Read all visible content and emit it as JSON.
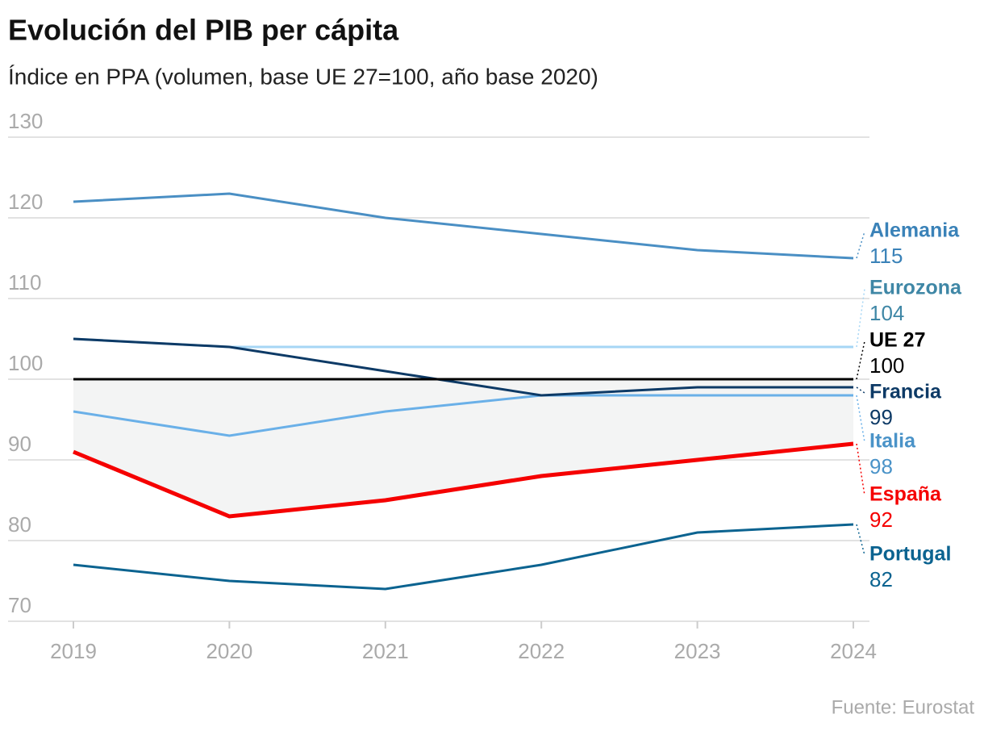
{
  "chart_data": {
    "type": "line",
    "title": "Evolución del PIB per cápita",
    "subtitle": "Índice en PPA (volumen, base UE 27=100, año base 2020)",
    "source": "Fuente: Eurostat",
    "x": [
      2019,
      2020,
      2021,
      2022,
      2023,
      2024
    ],
    "xlim": [
      2019,
      2024
    ],
    "xticks": [
      2019,
      2020,
      2021,
      2022,
      2023,
      2024
    ],
    "ylim": [
      70,
      130
    ],
    "yticks": [
      70,
      80,
      90,
      100,
      110,
      120,
      130
    ],
    "grid": true,
    "shade_between": [
      "UE 27",
      "España"
    ],
    "shade_color": "#f3f4f4",
    "series": [
      {
        "name": "Alemania",
        "color": "#4a8fc4",
        "label_color": "#3a82b8",
        "values": [
          122,
          123,
          120,
          118,
          116,
          115
        ],
        "end_label": "115"
      },
      {
        "name": "Eurozona",
        "color": "#a6d6f5",
        "label_color": "#3f87a6",
        "values": [
          105,
          104,
          104,
          104,
          104,
          104
        ],
        "end_label": "104"
      },
      {
        "name": "UE 27",
        "color": "#000000",
        "label_color": "#000000",
        "values": [
          100,
          100,
          100,
          100,
          100,
          100
        ],
        "end_label": "100"
      },
      {
        "name": "Francia",
        "color": "#0d3a66",
        "label_color": "#0d3a66",
        "values": [
          105,
          104,
          101,
          98,
          99,
          99
        ],
        "end_label": "99"
      },
      {
        "name": "Italia",
        "color": "#6ab0e8",
        "label_color": "#4a93c8",
        "values": [
          96,
          93,
          96,
          98,
          98,
          98
        ],
        "end_label": "98"
      },
      {
        "name": "España",
        "color": "#f50000",
        "label_color": "#f50000",
        "values": [
          91,
          83,
          85,
          88,
          90,
          92
        ],
        "end_label": "92",
        "width": 5
      },
      {
        "name": "Portugal",
        "color": "#0b6390",
        "label_color": "#0b6390",
        "values": [
          77,
          75,
          74,
          77,
          81,
          82
        ],
        "end_label": "82"
      }
    ]
  }
}
